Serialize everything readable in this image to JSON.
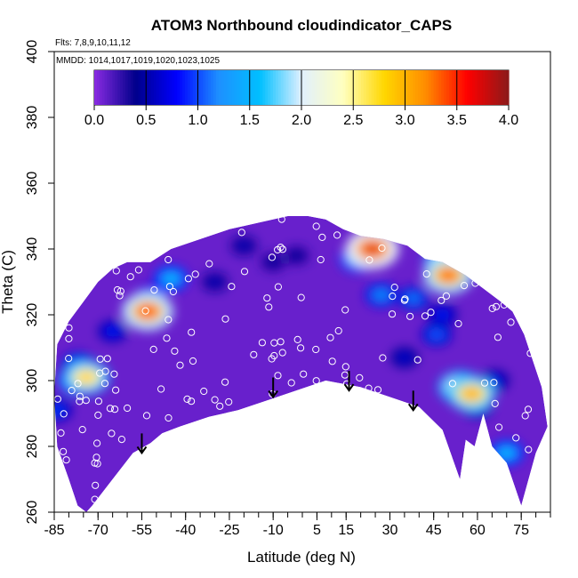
{
  "chart_data": {
    "type": "heatmap",
    "title": "ATOM3 Northbound cloudindicator_CAPS",
    "annotations": [
      "Flts: 7,8,9,10,11,12",
      "MMDD: 1014,1017,1019,1020,1023,1025"
    ],
    "xlabel": "Latitude (deg N)",
    "ylabel": "Theta (C)",
    "xlim": [
      -85,
      85
    ],
    "ylim": [
      260,
      400
    ],
    "x_ticks": [
      -85,
      -70,
      -55,
      -40,
      -25,
      -10,
      5,
      15,
      30,
      45,
      60,
      75
    ],
    "y_ticks": [
      260,
      280,
      300,
      320,
      340,
      360,
      380,
      400
    ],
    "colorbar": {
      "range": [
        0,
        4
      ],
      "ticks": [
        "0.0",
        "0.5",
        "1.0",
        "1.5",
        "2.0",
        "2.5",
        "3.0",
        "3.5",
        "4.0"
      ],
      "colors": [
        "#8a2be2",
        "#00008b",
        "#0000ff",
        "#1e90ff",
        "#00bfff",
        "#e0f0ff",
        "#ffffc0",
        "#ffd700",
        "#ff8c00",
        "#ff0000",
        "#8b1a1a"
      ]
    },
    "colormap_background_value": 0.1,
    "hotspots": [
      {
        "lat": -53,
        "theta": 321,
        "value": 3.5
      },
      {
        "lat": -74,
        "theta": 301,
        "value": 2.9
      },
      {
        "lat": -77,
        "theta": 300,
        "value": 2.0
      },
      {
        "lat": -45,
        "theta": 331,
        "value": 1.6
      },
      {
        "lat": 24,
        "theta": 340,
        "value": 3.7
      },
      {
        "lat": 19,
        "theta": 337,
        "value": 1.8
      },
      {
        "lat": 27,
        "theta": 326,
        "value": 1.3
      },
      {
        "lat": 50,
        "theta": 332,
        "value": 3.4
      },
      {
        "lat": 49,
        "theta": 336,
        "value": 2.5
      },
      {
        "lat": 58,
        "theta": 296,
        "value": 3.1
      },
      {
        "lat": 54,
        "theta": 298,
        "value": 2.6
      },
      {
        "lat": -77,
        "theta": 305,
        "value": 1.2
      },
      {
        "lat": -52,
        "theta": 325,
        "value": 1.4
      },
      {
        "lat": 70,
        "theta": 278,
        "value": 1.6
      },
      {
        "lat": -84,
        "theta": 291,
        "value": 1.0
      },
      {
        "lat": 38,
        "theta": 325,
        "value": 1.2
      },
      {
        "lat": 60,
        "theta": 292,
        "value": 1.0
      },
      {
        "lat": 46,
        "theta": 314,
        "value": 1.1
      },
      {
        "lat": -20,
        "theta": 341,
        "value": 0.6
      },
      {
        "lat": -10,
        "theta": 336,
        "value": 0.5
      },
      {
        "lat": -2,
        "theta": 338,
        "value": 0.5
      },
      {
        "lat": 35,
        "theta": 307,
        "value": 0.7
      },
      {
        "lat": 48,
        "theta": 320,
        "value": 0.9
      },
      {
        "lat": 66,
        "theta": 300,
        "value": 0.8
      },
      {
        "lat": -30,
        "theta": 330,
        "value": 0.6
      },
      {
        "lat": -65,
        "theta": 315,
        "value": 0.9
      }
    ],
    "arrows": [
      {
        "lat": -55,
        "theta": 278
      },
      {
        "lat": -10,
        "theta": 295
      },
      {
        "lat": 16,
        "theta": 297
      },
      {
        "lat": 38,
        "theta": 291
      }
    ]
  }
}
